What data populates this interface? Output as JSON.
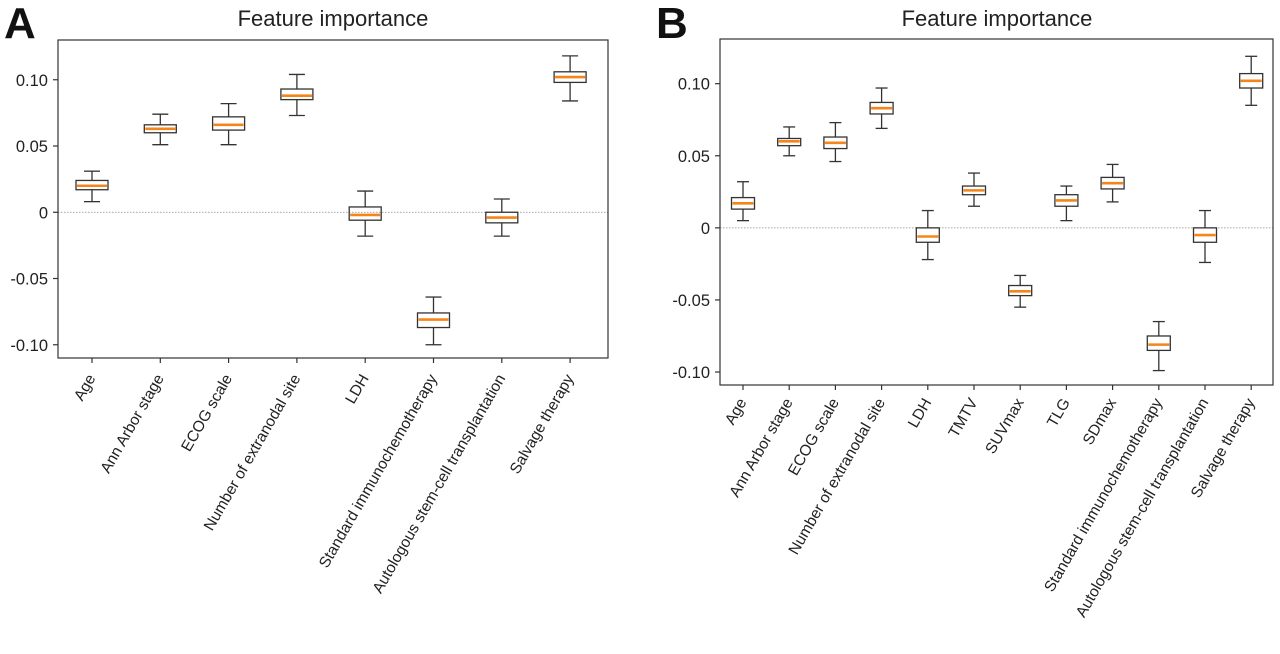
{
  "colors": {
    "median": "#f58518",
    "box": "#333333",
    "zero_line": "#888888"
  },
  "chart_data": [
    {
      "panel": "A",
      "type": "box",
      "title": "Feature importance",
      "xlabel": "",
      "ylabel": "",
      "ylim": [
        -0.11,
        0.13
      ],
      "yticks": [
        0.1,
        0.05,
        0,
        -0.05,
        -0.1
      ],
      "ytick_labels": [
        "0.10",
        "0.05",
        "0",
        "-0.05",
        "-0.10"
      ],
      "grid": false,
      "reference_line": 0,
      "categories": [
        "Age",
        "Ann Arbor stage",
        "ECOG scale",
        "Number of extranodal site",
        "LDH",
        "Standard immunochemotherapy",
        "Autologous stem-cell transplantation",
        "Salvage therapy"
      ],
      "boxes": [
        {
          "min": 0.008,
          "q1": 0.017,
          "median": 0.02,
          "q3": 0.024,
          "max": 0.031
        },
        {
          "min": 0.051,
          "q1": 0.06,
          "median": 0.063,
          "q3": 0.066,
          "max": 0.074
        },
        {
          "min": 0.051,
          "q1": 0.062,
          "median": 0.066,
          "q3": 0.072,
          "max": 0.082
        },
        {
          "min": 0.073,
          "q1": 0.085,
          "median": 0.088,
          "q3": 0.093,
          "max": 0.104
        },
        {
          "min": -0.018,
          "q1": -0.006,
          "median": -0.002,
          "q3": 0.004,
          "max": 0.016
        },
        {
          "min": -0.1,
          "q1": -0.087,
          "median": -0.081,
          "q3": -0.076,
          "max": -0.064
        },
        {
          "min": -0.018,
          "q1": -0.008,
          "median": -0.004,
          "q3": 0.0,
          "max": 0.01
        },
        {
          "min": 0.084,
          "q1": 0.098,
          "median": 0.102,
          "q3": 0.106,
          "max": 0.118
        }
      ]
    },
    {
      "panel": "B",
      "type": "box",
      "title": "Feature importance",
      "xlabel": "",
      "ylabel": "",
      "ylim": [
        -0.109,
        0.131
      ],
      "yticks": [
        0.1,
        0.05,
        0,
        -0.05,
        -0.1
      ],
      "ytick_labels": [
        "0.10",
        "0.05",
        "0",
        "-0.05",
        "-0.10"
      ],
      "grid": false,
      "reference_line": 0,
      "categories": [
        "Age",
        "Ann Arbor stage",
        "ECOG scale",
        "Number of extranodal site",
        "LDH",
        "TMTV",
        "SUVmax",
        "TLG",
        "SDmax",
        "Standard immunochemotherapy",
        "Autologous stem-cell transplantation",
        "Salvage therapy"
      ],
      "boxes": [
        {
          "min": 0.005,
          "q1": 0.013,
          "median": 0.017,
          "q3": 0.021,
          "max": 0.032
        },
        {
          "min": 0.05,
          "q1": 0.057,
          "median": 0.06,
          "q3": 0.062,
          "max": 0.07
        },
        {
          "min": 0.046,
          "q1": 0.055,
          "median": 0.059,
          "q3": 0.063,
          "max": 0.073
        },
        {
          "min": 0.069,
          "q1": 0.079,
          "median": 0.083,
          "q3": 0.087,
          "max": 0.097
        },
        {
          "min": -0.022,
          "q1": -0.01,
          "median": -0.006,
          "q3": 0.0,
          "max": 0.012
        },
        {
          "min": 0.015,
          "q1": 0.023,
          "median": 0.026,
          "q3": 0.029,
          "max": 0.038
        },
        {
          "min": -0.055,
          "q1": -0.047,
          "median": -0.044,
          "q3": -0.04,
          "max": -0.033
        },
        {
          "min": 0.005,
          "q1": 0.015,
          "median": 0.019,
          "q3": 0.023,
          "max": 0.029
        },
        {
          "min": 0.018,
          "q1": 0.027,
          "median": 0.031,
          "q3": 0.035,
          "max": 0.044
        },
        {
          "min": -0.099,
          "q1": -0.085,
          "median": -0.081,
          "q3": -0.075,
          "max": -0.065
        },
        {
          "min": -0.024,
          "q1": -0.01,
          "median": -0.005,
          "q3": 0.0,
          "max": 0.012
        },
        {
          "min": 0.085,
          "q1": 0.097,
          "median": 0.102,
          "q3": 0.107,
          "max": 0.119
        }
      ]
    }
  ]
}
